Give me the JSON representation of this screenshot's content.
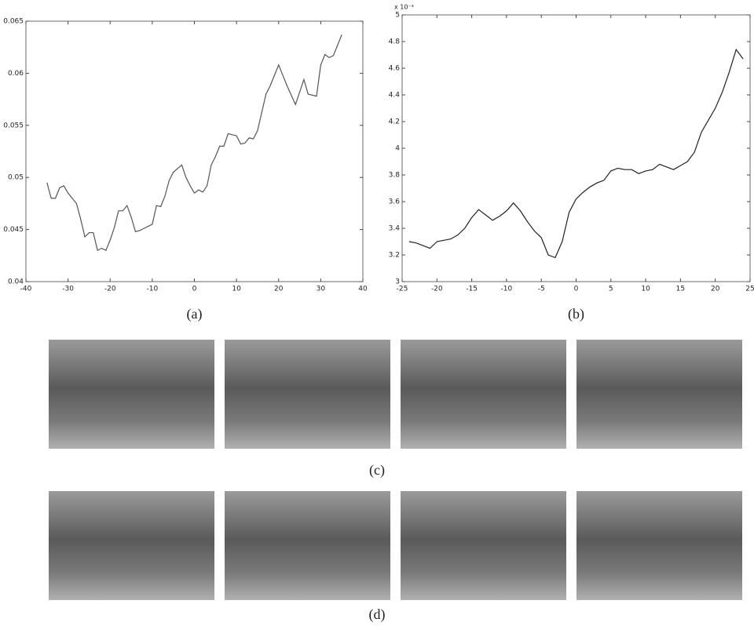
{
  "chart_data": [
    {
      "type": "line",
      "caption": "(a)",
      "x": [
        -35,
        -34,
        -33,
        -32,
        -31,
        -30,
        -28,
        -27,
        -26,
        -25,
        -24,
        -23,
        -22,
        -21,
        -20,
        -19,
        -18,
        -17,
        -16,
        -15,
        -14,
        -13,
        -12,
        -10,
        -9,
        -8,
        -7,
        -6,
        -5,
        -3,
        -2,
        -1,
        0,
        1,
        2,
        3,
        4,
        5,
        6,
        7,
        8,
        10,
        11,
        12,
        13,
        14,
        15,
        17,
        18,
        20,
        21,
        22,
        24,
        25,
        26,
        27,
        29,
        30,
        31,
        32,
        33,
        35
      ],
      "values": [
        0.0495,
        0.048,
        0.048,
        0.049,
        0.0492,
        0.0485,
        0.0475,
        0.046,
        0.0443,
        0.0447,
        0.0447,
        0.043,
        0.0432,
        0.043,
        0.044,
        0.0452,
        0.0468,
        0.0468,
        0.0473,
        0.0462,
        0.0448,
        0.0449,
        0.0451,
        0.0455,
        0.0473,
        0.0472,
        0.0482,
        0.0497,
        0.0505,
        0.0512,
        0.05,
        0.0492,
        0.0485,
        0.0488,
        0.0486,
        0.0492,
        0.0512,
        0.052,
        0.053,
        0.053,
        0.0542,
        0.054,
        0.0532,
        0.0533,
        0.0538,
        0.0537,
        0.0545,
        0.058,
        0.0588,
        0.0608,
        0.0598,
        0.0588,
        0.057,
        0.0582,
        0.0594,
        0.058,
        0.0578,
        0.0608,
        0.0618,
        0.0615,
        0.0617,
        0.0637
      ],
      "color": "#555555",
      "xlim": [
        -40,
        40
      ],
      "xticks": [
        -40,
        -30,
        -20,
        -10,
        0,
        10,
        20,
        30,
        40
      ],
      "ylim": [
        0.04,
        0.065
      ],
      "yticks": [
        0.04,
        0.045,
        0.05,
        0.055,
        0.06,
        0.065
      ]
    },
    {
      "type": "line",
      "caption": "(b)",
      "y_multiplier": "x 10⁻³",
      "x": [
        -24,
        -23,
        -22,
        -21,
        -20,
        -19,
        -18,
        -17,
        -16,
        -15,
        -14,
        -13,
        -12,
        -11,
        -10,
        -9,
        -8,
        -7,
        -6,
        -5,
        -4,
        -3,
        -2,
        -1,
        0,
        1,
        2,
        3,
        4,
        5,
        6,
        7,
        8,
        9,
        10,
        11,
        12,
        13,
        14,
        15,
        16,
        17,
        18,
        19,
        20,
        21,
        22,
        23,
        24
      ],
      "values": [
        3.3,
        3.29,
        3.27,
        3.25,
        3.3,
        3.31,
        3.32,
        3.35,
        3.4,
        3.48,
        3.54,
        3.5,
        3.46,
        3.49,
        3.53,
        3.59,
        3.53,
        3.45,
        3.38,
        3.33,
        3.2,
        3.18,
        3.3,
        3.52,
        3.62,
        3.67,
        3.71,
        3.74,
        3.76,
        3.83,
        3.85,
        3.84,
        3.84,
        3.81,
        3.83,
        3.84,
        3.88,
        3.86,
        3.84,
        3.87,
        3.9,
        3.97,
        4.12,
        4.21,
        4.3,
        4.42,
        4.57,
        4.74,
        4.67
      ],
      "color": "#222222",
      "xlim": [
        -25,
        25
      ],
      "xticks": [
        -25,
        -20,
        -15,
        -10,
        -5,
        0,
        5,
        10,
        15,
        20,
        25
      ],
      "ylim": [
        3,
        5
      ],
      "yticks": [
        3,
        3.2,
        3.4,
        3.6,
        3.8,
        4,
        4.2,
        4.4,
        4.6,
        4.8,
        5
      ]
    }
  ],
  "figures": [
    {
      "caption": "(c)"
    },
    {
      "caption": "(d)"
    }
  ]
}
